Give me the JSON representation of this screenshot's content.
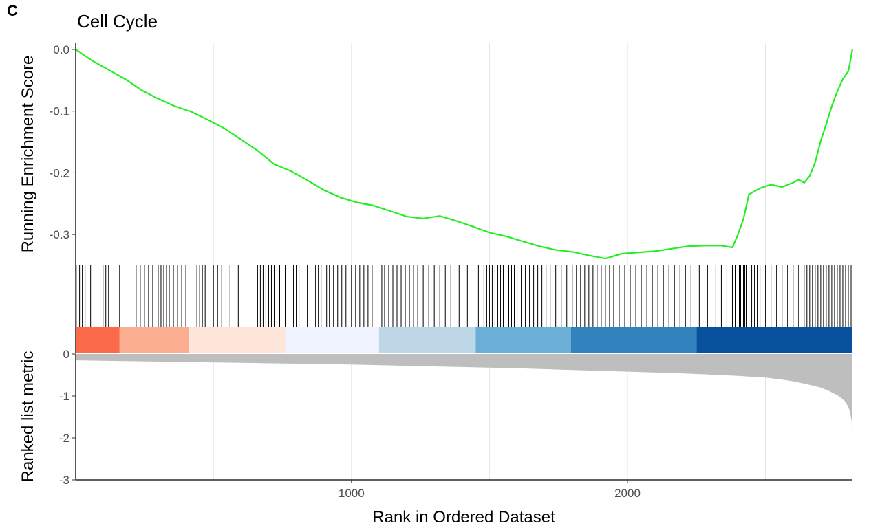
{
  "panel_label": "C",
  "chart_data": {
    "type": "line",
    "title": "Cell Cycle",
    "xlabel": "Rank in Ordered Dataset",
    "xlim": [
      1,
      2815
    ],
    "x_ticks": [
      1000,
      2000
    ],
    "x_tick_labels": [
      "1000",
      "2000"
    ],
    "grid_x": [
      500,
      1000,
      1500,
      2000,
      2500
    ],
    "panels": [
      {
        "name": "running-enrichment",
        "ylabel": "Running Enrichment Score",
        "ylim": [
          -0.35,
          0.01
        ],
        "y_ticks": [
          0.0,
          -0.1,
          -0.2,
          -0.3
        ],
        "y_tick_labels": [
          "0.0",
          "-0.1",
          "-0.2",
          "-0.3"
        ],
        "line_color": "#22ee22",
        "series": [
          {
            "x": [
              1,
              60,
              120,
              180,
              240,
              300,
              360,
              420,
              480,
              540,
              600,
              660,
              720,
              780,
              840,
              900,
              960,
              1020,
              1080,
              1140,
              1200,
              1260,
              1320,
              1380,
              1440,
              1500,
              1560,
              1620,
              1680,
              1740,
              1800,
              1860,
              1920,
              1980,
              2040,
              2100,
              2160,
              2220,
              2280,
              2340,
              2380,
              2400,
              2420,
              2440,
              2480,
              2520,
              2560,
              2600,
              2620,
              2640,
              2660,
              2680,
              2700,
              2720,
              2740,
              2760,
              2780,
              2800,
              2815
            ],
            "y": [
              0.0,
              -0.018,
              -0.033,
              -0.048,
              -0.066,
              -0.08,
              -0.092,
              -0.101,
              -0.114,
              -0.128,
              -0.146,
              -0.164,
              -0.186,
              -0.197,
              -0.212,
              -0.228,
              -0.24,
              -0.248,
              -0.253,
              -0.262,
              -0.271,
              -0.274,
              -0.27,
              -0.278,
              -0.287,
              -0.297,
              -0.303,
              -0.311,
              -0.319,
              -0.325,
              -0.328,
              -0.334,
              -0.339,
              -0.331,
              -0.329,
              -0.327,
              -0.323,
              -0.319,
              -0.318,
              -0.318,
              -0.321,
              -0.3,
              -0.275,
              -0.235,
              -0.225,
              -0.219,
              -0.223,
              -0.216,
              -0.211,
              -0.216,
              -0.205,
              -0.183,
              -0.148,
              -0.121,
              -0.092,
              -0.068,
              -0.048,
              -0.035,
              0.0
            ]
          }
        ]
      },
      {
        "name": "gene-hits",
        "hits": [
          3,
          15,
          25,
          35,
          55,
          100,
          110,
          120,
          160,
          220,
          235,
          250,
          265,
          280,
          300,
          310,
          320,
          330,
          340,
          355,
          370,
          385,
          400,
          440,
          450,
          460,
          470,
          500,
          515,
          530,
          560,
          590,
          660,
          670,
          680,
          690,
          700,
          710,
          720,
          730,
          740,
          760,
          790,
          800,
          810,
          840,
          870,
          880,
          890,
          910,
          920,
          935,
          950,
          965,
          980,
          1000,
          1015,
          1030,
          1045,
          1060,
          1075,
          1110,
          1120,
          1135,
          1150,
          1165,
          1180,
          1195,
          1210,
          1225,
          1240,
          1260,
          1280,
          1300,
          1320,
          1340,
          1360,
          1390,
          1420,
          1460,
          1480,
          1490,
          1500,
          1510,
          1520,
          1530,
          1540,
          1550,
          1560,
          1570,
          1580,
          1590,
          1600,
          1615,
          1630,
          1645,
          1660,
          1675,
          1690,
          1705,
          1720,
          1740,
          1760,
          1780,
          1800,
          1815,
          1830,
          1845,
          1860,
          1875,
          1890,
          1905,
          1920,
          1935,
          1950,
          1970,
          1990,
          2010,
          2030,
          2050,
          2070,
          2090,
          2110,
          2130,
          2150,
          2170,
          2190,
          2210,
          2230,
          2260,
          2290,
          2320,
          2340,
          2360,
          2380,
          2390,
          2400,
          2405,
          2410,
          2415,
          2420,
          2425,
          2430,
          2440,
          2450,
          2460,
          2470,
          2480,
          2500,
          2520,
          2540,
          2560,
          2580,
          2600,
          2620,
          2640,
          2650,
          2660,
          2670,
          2680,
          2690,
          2700,
          2710,
          2720,
          2730,
          2740,
          2750,
          2760,
          2770,
          2780,
          2790,
          2800,
          2810
        ],
        "color_bands": [
          {
            "from": 1,
            "to": 160,
            "color": "#fb6a4a"
          },
          {
            "from": 160,
            "to": 410,
            "color": "#fcae91"
          },
          {
            "from": 410,
            "to": 760,
            "color": "#fee5d9"
          },
          {
            "from": 760,
            "to": 1100,
            "color": "#eff3ff"
          },
          {
            "from": 1100,
            "to": 1450,
            "color": "#bdd7e7"
          },
          {
            "from": 1450,
            "to": 1795,
            "color": "#6baed6"
          },
          {
            "from": 1795,
            "to": 2250,
            "color": "#3182bd"
          },
          {
            "from": 2250,
            "to": 2815,
            "color": "#08519c"
          }
        ]
      },
      {
        "name": "ranked-metric",
        "ylabel": "Ranked list metric",
        "ylim": [
          -3,
          0
        ],
        "y_ticks": [
          0,
          -1,
          -2,
          -3
        ],
        "y_tick_labels": [
          "0",
          "-1",
          "-2",
          "-3"
        ],
        "fill_color": "#bebebe",
        "series": [
          {
            "x": [
              1,
              200,
              400,
              600,
              800,
              1000,
              1200,
              1400,
              1600,
              1800,
              2000,
              2200,
              2300,
              2400,
              2500,
              2550,
              2600,
              2650,
              2700,
              2730,
              2760,
              2780,
              2795,
              2805,
              2812,
              2815
            ],
            "y": [
              -0.15,
              -0.17,
              -0.19,
              -0.21,
              -0.23,
              -0.25,
              -0.28,
              -0.31,
              -0.34,
              -0.38,
              -0.42,
              -0.46,
              -0.49,
              -0.52,
              -0.56,
              -0.6,
              -0.65,
              -0.72,
              -0.8,
              -0.88,
              -0.98,
              -1.08,
              -1.2,
              -1.35,
              -1.6,
              -2.95
            ]
          }
        ]
      }
    ]
  }
}
